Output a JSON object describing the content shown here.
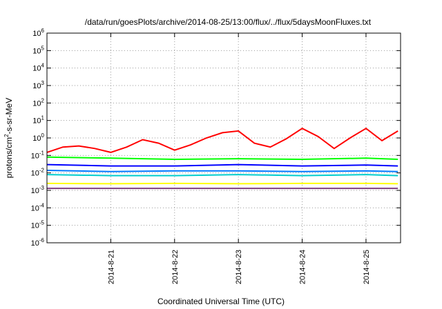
{
  "chart_data": {
    "type": "line",
    "title": "/data/run/goesPlots/archive/2014-08-25/13:00/flux/../flux/5daysMoonFluxes.txt",
    "xlabel": "Coordinated Universal Time (UTC)",
    "ylabel": {
      "base": "protons/cm",
      "sup": "2",
      "rest": "-s-sr-MeV"
    },
    "yscale": "log",
    "ylim_exp": [
      -6,
      6
    ],
    "y_tick_base": "10",
    "y_ticks_exp": [
      "-6",
      "-5",
      "-4",
      "-3",
      "-2",
      "-1",
      "0",
      "1",
      "2",
      "3",
      "4",
      "5",
      "6"
    ],
    "xlim": [
      "2014-08-20T00:00",
      "2014-08-25T13:00"
    ],
    "x_ticks": [
      {
        "label": "2014-8-21",
        "t": "2014-08-21T00:00"
      },
      {
        "label": "2014-8-22",
        "t": "2014-08-22T00:00"
      },
      {
        "label": "2014-8-23",
        "t": "2014-08-23T00:00"
      },
      {
        "label": "2014-8-24",
        "t": "2014-08-24T00:00"
      },
      {
        "label": "2014-8-25",
        "t": "2014-08-25T00:00"
      }
    ],
    "grid": true,
    "colors": [
      "#ff0000",
      "#00ff00",
      "#0000ff",
      "#00cccc",
      "#0077ff",
      "#ffff00",
      "#7f3f7f"
    ],
    "series": [
      {
        "color": "#ff0000",
        "x": [
          "2014-08-20T00:00",
          "2014-08-20T06:00",
          "2014-08-20T12:00",
          "2014-08-20T18:00",
          "2014-08-21T00:00",
          "2014-08-21T06:00",
          "2014-08-21T12:00",
          "2014-08-21T18:00",
          "2014-08-22T00:00",
          "2014-08-22T06:00",
          "2014-08-22T12:00",
          "2014-08-22T18:00",
          "2014-08-23T00:00",
          "2014-08-23T06:00",
          "2014-08-23T12:00",
          "2014-08-23T18:00",
          "2014-08-24T00:00",
          "2014-08-24T06:00",
          "2014-08-24T12:00",
          "2014-08-24T18:00",
          "2014-08-25T00:00",
          "2014-08-25T06:00",
          "2014-08-25T12:00"
        ],
        "y": [
          0.15,
          0.3,
          0.35,
          0.25,
          0.15,
          0.3,
          0.8,
          0.5,
          0.2,
          0.4,
          1.0,
          2.0,
          2.5,
          0.5,
          0.3,
          0.9,
          3.5,
          1.2,
          0.25,
          1.0,
          3.5,
          0.7,
          2.5
        ]
      },
      {
        "color": "#00ff00",
        "x": [
          "2014-08-20T00:00",
          "2014-08-21T00:00",
          "2014-08-22T00:00",
          "2014-08-23T00:00",
          "2014-08-24T00:00",
          "2014-08-25T00:00",
          "2014-08-25T12:00"
        ],
        "y": [
          0.08,
          0.07,
          0.06,
          0.065,
          0.06,
          0.07,
          0.06
        ]
      },
      {
        "color": "#0000ff",
        "x": [
          "2014-08-20T00:00",
          "2014-08-21T00:00",
          "2014-08-22T00:00",
          "2014-08-23T00:00",
          "2014-08-24T00:00",
          "2014-08-25T00:00",
          "2014-08-25T12:00"
        ],
        "y": [
          0.03,
          0.025,
          0.025,
          0.03,
          0.025,
          0.028,
          0.025
        ]
      },
      {
        "color": "#00cccc",
        "x": [
          "2014-08-20T00:00",
          "2014-08-21T00:00",
          "2014-08-22T00:00",
          "2014-08-23T00:00",
          "2014-08-24T00:00",
          "2014-08-25T00:00",
          "2014-08-25T12:00"
        ],
        "y": [
          0.008,
          0.007,
          0.007,
          0.008,
          0.007,
          0.008,
          0.007
        ]
      },
      {
        "color": "#0077ff",
        "x": [
          "2014-08-20T00:00",
          "2014-08-21T00:00",
          "2014-08-22T00:00",
          "2014-08-23T00:00",
          "2014-08-24T00:00",
          "2014-08-25T00:00",
          "2014-08-25T12:00"
        ],
        "y": [
          0.014,
          0.012,
          0.013,
          0.013,
          0.012,
          0.013,
          0.012
        ]
      },
      {
        "color": "#ffff00",
        "x": [
          "2014-08-20T00:00",
          "2014-08-21T00:00",
          "2014-08-22T00:00",
          "2014-08-23T00:00",
          "2014-08-24T00:00",
          "2014-08-25T00:00",
          "2014-08-25T12:00"
        ],
        "y": [
          0.0025,
          0.0024,
          0.0025,
          0.0024,
          0.0025,
          0.0025,
          0.0024
        ]
      },
      {
        "color": "#7f3f7f",
        "x": [
          "2014-08-20T00:00",
          "2014-08-21T00:00",
          "2014-08-22T00:00",
          "2014-08-23T00:00",
          "2014-08-24T00:00",
          "2014-08-25T00:00",
          "2014-08-25T12:00"
        ],
        "y": [
          0.0013,
          0.0013,
          0.0013,
          0.0013,
          0.0013,
          0.0013,
          0.0013
        ]
      }
    ]
  }
}
